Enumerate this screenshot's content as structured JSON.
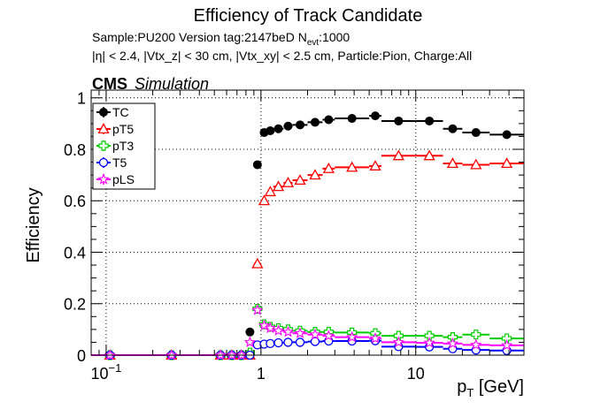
{
  "chart_data": {
    "type": "scatter",
    "title": "Efficiency of Track Candidate",
    "subtitle_line1_prefix": "Sample:PU200   Version tag:2147beD  N",
    "subtitle_line1_sub": "evt",
    "subtitle_line1_suffix": ":1000",
    "subtitle_line2": "|η| < 2.4, |Vtx_z| < 30 cm, |Vtx_xy| < 2.5 cm, Particle:Pion, Charge:All",
    "cms_label": "CMS",
    "cms_sublabel": "Simulation",
    "ylabel": "Efficiency",
    "xlabel_main": "p",
    "xlabel_sub": "T",
    "xlabel_unit": " [GeV]",
    "xscale": "log",
    "xlim": [
      0.08,
      50
    ],
    "ylim": [
      0,
      1.03
    ],
    "grid": true,
    "legend_position": "top-left",
    "x_ticks": [
      {
        "value": 0.1,
        "base": "10",
        "exp": "−1"
      },
      {
        "value": 1,
        "label": "1"
      },
      {
        "value": 10,
        "label": "10"
      }
    ],
    "y_ticks": [
      {
        "value": 0,
        "label": "0"
      },
      {
        "value": 0.2,
        "label": "0.2"
      },
      {
        "value": 0.4,
        "label": "0.4"
      },
      {
        "value": 0.6,
        "label": "0.6"
      },
      {
        "value": 0.8,
        "label": "0.8"
      },
      {
        "value": 1,
        "label": "1"
      }
    ],
    "bin_edges": [
      0.08,
      0.14,
      0.5,
      0.6,
      0.7,
      0.8,
      0.9,
      1.0,
      1.1,
      1.2,
      1.4,
      1.6,
      2.0,
      2.5,
      3.0,
      5.0,
      6.0,
      10.0,
      15.0,
      20.0,
      30.0,
      50.0
    ],
    "series": [
      {
        "name": "TC",
        "color": "#000000",
        "marker": "filled-circle",
        "values": [
          0.0,
          0.0,
          0.0,
          0.0,
          0.0,
          0.09,
          0.74,
          0.865,
          0.872,
          0.88,
          0.89,
          0.895,
          0.905,
          0.915,
          0.92,
          0.93,
          0.91,
          0.91,
          0.88,
          0.865,
          0.857
        ]
      },
      {
        "name": "pT5",
        "color": "#ff0000",
        "marker": "open-triangle",
        "values": [
          0.0,
          0.0,
          0.0,
          0.0,
          0.0,
          0.0,
          0.355,
          0.6,
          0.635,
          0.655,
          0.67,
          0.68,
          0.7,
          0.725,
          0.73,
          0.735,
          0.775,
          0.775,
          0.745,
          0.74,
          0.745
        ]
      },
      {
        "name": "pT3",
        "color": "#00cc00",
        "marker": "open-cross",
        "values": [
          0.0,
          0.0,
          0.0,
          0.0,
          0.0,
          0.01,
          0.18,
          0.12,
          0.11,
          0.105,
          0.1,
          0.095,
          0.09,
          0.09,
          0.088,
          0.085,
          0.075,
          0.075,
          0.07,
          0.08,
          0.065
        ]
      },
      {
        "name": "T5",
        "color": "#0000ff",
        "marker": "open-circle",
        "values": [
          0.0,
          0.0,
          0.0,
          0.0,
          0.0,
          0.0,
          0.04,
          0.043,
          0.045,
          0.048,
          0.05,
          0.05,
          0.053,
          0.055,
          0.055,
          0.056,
          0.033,
          0.032,
          0.025,
          0.02,
          0.018
        ]
      },
      {
        "name": "pLS",
        "color": "#ff00ff",
        "marker": "open-star",
        "values": [
          0.0,
          0.0,
          0.0,
          0.0,
          0.0,
          0.05,
          0.175,
          0.115,
          0.105,
          0.095,
          0.09,
          0.085,
          0.08,
          0.075,
          0.07,
          0.065,
          0.05,
          0.048,
          0.045,
          0.04,
          0.038
        ]
      }
    ]
  }
}
